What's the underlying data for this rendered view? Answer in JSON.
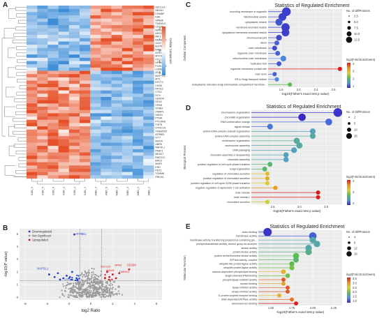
{
  "panels": {
    "a": "A",
    "b": "B",
    "c": "C",
    "d": "D",
    "e": "E"
  },
  "heatmap": {
    "samples": [
      "CON_3",
      "CON_5",
      "CON_6",
      "CON_2",
      "CON_4",
      "CON_1",
      "KIBD_4",
      "KIBD_6",
      "KIBD_5",
      "KIBD_3",
      "KIBD_2",
      "KIBD_1"
    ],
    "genes": [
      "SUCLG2",
      "ANXA1",
      "CRMBP",
      "KHK",
      "SPAB6",
      "TMEM13",
      "CD160",
      "NPM1",
      "AHSG",
      "MIF1",
      "ANXA2P2",
      "ULK2",
      "ACPAT1",
      "RAB14",
      "ATRX",
      "MYO1C",
      "TTLL3",
      "HP1BP3",
      "PLEKHC2",
      "LEMD3",
      "ATIC",
      "MAP7D1",
      "MT1",
      "ESYT2",
      "CASK",
      "RPS12",
      "CTS2",
      "DCX",
      "SUMO4",
      "DDX1",
      "CRM1",
      "STAB2",
      "DMAP1",
      "HADH",
      "PTMA",
      "PYCARD",
      "TGFB",
      "DYNC2I1",
      "TMEM205",
      "ATP8B1",
      "HT-7",
      "MAOA",
      "UBR5",
      "NAPSL1",
      "PAAF1",
      "MED27",
      "RAD21C",
      "BAG3",
      "MAP2",
      "ESD",
      "PEX1",
      "TOMM8",
      "PRDX4"
    ],
    "colorbar_title": "Cellular Component",
    "colorbar_ticks": [
      "2",
      "1",
      "0",
      "-1",
      "-2"
    ]
  },
  "volcano": {
    "legend": [
      "Downregulated",
      "Not Significant",
      "Upregulated"
    ],
    "xlabel": "log2 Ratio",
    "ylabel": "-log10(P value)",
    "xticks": [
      "-6",
      "-4",
      "-2",
      "0",
      "2",
      "4",
      "6"
    ],
    "yticks": [
      "0",
      "1",
      "2",
      "3",
      "4",
      "5"
    ],
    "labels_down": [
      "NAPSL1",
      "ATP8B1",
      "UTR1"
    ],
    "labels_up": [
      "SUCLG2",
      "ANXA1",
      "NPM1",
      "TMEM13",
      "CD160"
    ]
  },
  "chart_data": [
    {
      "type": "scatter",
      "title": "Statistics of Regulated Enrichment",
      "ylabel": "Cellular Component",
      "xlabel": "-log10(Fisher's exact test p value)",
      "xticks": [
        "1.6",
        "2.0",
        "2.4",
        "2.8"
      ],
      "xlim": [
        1.3,
        3.0
      ],
      "categories": [
        "bounding membrane of organelle",
        "mitochondrial vesicle",
        "cytoplasmic vesicle",
        "membrane-bounded vesicle",
        "cytoplasmic membrane-bounded vesicle",
        "chromosomal part",
        "cilium",
        "outer membrane",
        "organelle outer membrane",
        "mitochondrial outer membrane",
        "replication fork",
        "organelle membrane contact site",
        "main axon",
        "ER to Golgi transport vesicle",
        "endoplasmic reticulum-Golgi intermediate compartment membran..."
      ],
      "values": [
        1.72,
        1.63,
        1.55,
        1.7,
        1.7,
        1.55,
        1.5,
        1.45,
        1.52,
        1.65,
        1.55,
        2.95,
        1.45,
        1.5,
        1.8
      ],
      "sizes": [
        15,
        11,
        9,
        13,
        11,
        5,
        3,
        3,
        3,
        5,
        3,
        2,
        2,
        2,
        2
      ],
      "fold": [
        1.2,
        1.2,
        1.4,
        1.2,
        1.2,
        1.3,
        1.5,
        1.3,
        1.5,
        1.8,
        1.4,
        4.2,
        1.5,
        1.8,
        2.6
      ],
      "size_legend_title": "No. of DiffProteins",
      "size_legend": [
        "2.5",
        "5.0",
        "7.5",
        "10.0",
        "12.5"
      ],
      "color_legend_title": "log2(Fold Enrichment)",
      "color_legend": [
        "4",
        "3",
        "2",
        "1"
      ]
    },
    {
      "type": "scatter",
      "title": "Statistics of Regulated Enrichment",
      "ylabel": "Biological Process",
      "xlabel": "-log10(Fisher's exact test p value)",
      "xticks": [
        "2.5",
        "3.0",
        "3.5"
      ],
      "xlim": [
        2.1,
        3.8
      ],
      "categories": [
        "chromosome organization",
        "chromatin organization",
        "DNA conformation change",
        "signal release",
        "protein-DNA complex subunit organization",
        "protein-DNA complex assembly",
        "nucleosome organization",
        "nucleosome assembly",
        "DNA packaging",
        "chromatin assembly or disassembly",
        "chromatin assembly",
        "positive regulation of cell cycle phase transition",
        "Golgi organization",
        "regulation of chemokine secretion",
        "positive regulation of chemokine secretion",
        "positive regulation of cell cycle G2/M phase transition",
        "negative regulation of alpha-beta T cell activation",
        "male meiosis",
        "male meiosis I",
        "chemokine secretion"
      ],
      "values": [
        3.72,
        3.05,
        3.55,
        2.45,
        3.25,
        3.25,
        2.95,
        3.0,
        2.9,
        2.75,
        2.75,
        2.45,
        2.35,
        2.4,
        2.4,
        2.4,
        2.55,
        3.35,
        3.35,
        2.4
      ],
      "sizes": [
        15,
        10,
        8,
        5,
        5,
        5,
        6,
        6,
        5,
        4,
        4,
        3,
        3,
        2,
        2,
        2,
        2,
        2,
        2,
        2
      ],
      "fold": [
        1.4,
        1.3,
        1.8,
        1.9,
        2.3,
        2.4,
        2.4,
        2.4,
        2.3,
        2.3,
        2.3,
        2.6,
        2.6,
        3.4,
        3.5,
        3.3,
        3.6,
        4.1,
        4.1,
        3.2
      ],
      "size_legend_title": "No. of DiffProteins",
      "size_legend": [
        "2",
        "5",
        "10",
        "15"
      ],
      "color_legend_title": "log2(Fold Enrichment)",
      "color_legend": [
        "4",
        "3",
        "2"
      ]
    },
    {
      "type": "scatter",
      "title": "Statistics of Regulated Enrichment",
      "ylabel": "Molecular Function",
      "xlabel": "-log10(Fisher's exact test p value)",
      "xticks": [
        "1.50",
        "1.75",
        "2.00",
        "2.25"
      ],
      "xlim": [
        1.35,
        2.35
      ],
      "categories": [
        "anion binding",
        "transferase activity",
        "transferase activity, transferring phosphorus-containing gro...",
        "phosphotransferase activity, alcohol group as acceptor",
        "kinase activity",
        "protein kinase activity",
        "protein serine/threonine kinase activity",
        "ATPase activity, coupled",
        "ubiquitin-like protein ligase activity",
        "ubiquitin protein ligase activity",
        "calcium-dependent phospholipid binding",
        "single-stranded RNA binding",
        "phospholipase inhibitor activity",
        "myosin binding",
        "lipase inhibitor activity",
        "kinase inhibitor activity",
        "G-protein coupled receptor binding",
        "DNA-dependent ATPase activity",
        "ammonium ion binding"
      ],
      "values": [
        1.46,
        2.0,
        2.0,
        2.05,
        1.95,
        1.95,
        1.8,
        1.8,
        1.75,
        1.75,
        1.65,
        1.7,
        1.65,
        1.65,
        1.7,
        1.7,
        1.6,
        1.75,
        1.8
      ],
      "sizes": [
        16,
        12,
        8,
        8,
        8,
        8,
        7,
        5,
        4,
        4,
        3,
        3,
        2,
        2,
        2,
        2,
        2,
        2,
        2
      ],
      "fold": [
        1.1,
        1.4,
        2.0,
        2.0,
        2.0,
        2.1,
        2.3,
        2.2,
        2.3,
        2.4,
        3.0,
        2.4,
        3.4,
        3.1,
        3.4,
        3.4,
        3.0,
        3.3,
        3.6
      ],
      "size_legend_title": "No. of DiffProteins",
      "size_legend": [
        "4",
        "8",
        "12",
        "16"
      ],
      "color_legend_title": "log2(Fold Enrichment)",
      "color_legend": [
        "3.5",
        "3.0",
        "2.5",
        "2.0",
        "1.5",
        "1.0"
      ]
    }
  ]
}
